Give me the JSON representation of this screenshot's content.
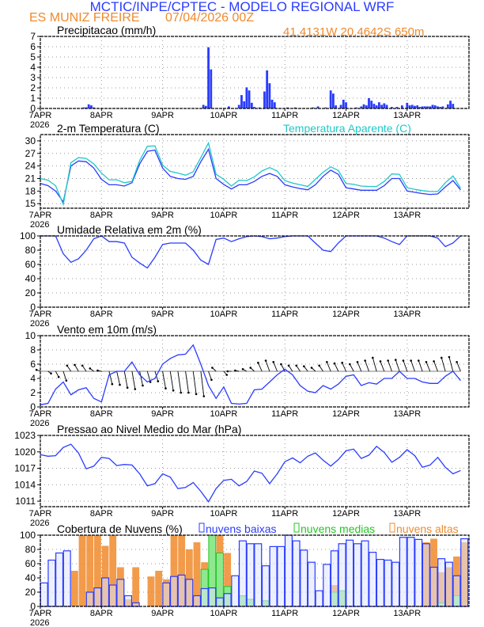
{
  "header": {
    "title": "MCTIC/INPE/CPTEC - MODELO REGIONAL WRF",
    "station": "ES MUNIZ FREIRE",
    "run": "07/04/2026 00Z",
    "location": "41.4131W 20.4642S 650m"
  },
  "colors": {
    "title": "#2a3cff",
    "orange": "#f08a2c",
    "blue": "#2a3cff",
    "cyan": "#1ec8c8",
    "green": "#22c822",
    "grid": "#999999"
  },
  "x_axis": {
    "day_labels": [
      "7APR",
      "8APR",
      "9APR",
      "10APR",
      "11APR",
      "12APR",
      "13APR"
    ],
    "year_label": "2026",
    "times_3h": [
      "07APR00Z",
      "07APR03Z",
      "07APR06Z",
      "07APR09Z",
      "07APR12Z",
      "07APR15Z",
      "07APR18Z",
      "07APR21Z",
      "08APR00Z",
      "08APR03Z",
      "08APR06Z",
      "08APR09Z",
      "08APR12Z",
      "08APR15Z",
      "08APR18Z",
      "08APR21Z",
      "09APR00Z",
      "09APR03Z",
      "09APR06Z",
      "09APR09Z",
      "09APR12Z",
      "09APR15Z",
      "09APR18Z",
      "09APR21Z",
      "10APR00Z",
      "10APR03Z",
      "10APR06Z",
      "10APR09Z",
      "10APR12Z",
      "10APR15Z",
      "10APR18Z",
      "10APR21Z",
      "11APR00Z",
      "11APR03Z",
      "11APR06Z",
      "11APR09Z",
      "11APR12Z",
      "11APR15Z",
      "11APR18Z",
      "11APR21Z",
      "12APR00Z",
      "12APR03Z",
      "12APR06Z",
      "12APR09Z",
      "12APR12Z",
      "12APR15Z",
      "12APR18Z",
      "12APR21Z",
      "13APR00Z",
      "13APR03Z",
      "13APR06Z",
      "13APR09Z",
      "13APR12Z",
      "13APR15Z",
      "13APR18Z",
      "13APR21Z"
    ]
  },
  "chart_data": [
    {
      "type": "bar",
      "title": "Precipitacao (mm/h)",
      "ylim": [
        0,
        7
      ],
      "yticks": [
        0,
        1,
        2,
        3,
        4,
        5,
        6,
        7
      ],
      "grid": true,
      "bars": [
        [
          "07APR17Z",
          0.1
        ],
        [
          "07APR18Z",
          0.1
        ],
        [
          "07APR19Z",
          0.4
        ],
        [
          "07APR20Z",
          0.3
        ],
        [
          "07APR21Z",
          0.1
        ],
        [
          "09APR16Z",
          0.35
        ],
        [
          "09APR17Z",
          0.25
        ],
        [
          "09APR18Z",
          5.95
        ],
        [
          "09APR19Z",
          3.8
        ],
        [
          "10APR02Z",
          0.2
        ],
        [
          "10APR06Z",
          0.35
        ],
        [
          "10APR07Z",
          1.3
        ],
        [
          "10APR08Z",
          0.7
        ],
        [
          "10APR09Z",
          2.05
        ],
        [
          "10APR10Z",
          1.75
        ],
        [
          "10APR11Z",
          0.55
        ],
        [
          "10APR12Z",
          0.15
        ],
        [
          "10APR14Z",
          0.1
        ],
        [
          "10APR16Z",
          1.65
        ],
        [
          "10APR17Z",
          3.7
        ],
        [
          "10APR18Z",
          2.45
        ],
        [
          "10APR19Z",
          0.85
        ],
        [
          "10APR20Z",
          0.6
        ],
        [
          "11APR01Z",
          0.1
        ],
        [
          "11APR04Z",
          0.1
        ],
        [
          "11APR11Z",
          0.1
        ],
        [
          "11APR13Z",
          0.2
        ],
        [
          "11APR16Z",
          0.1
        ],
        [
          "11APR18Z",
          1.75
        ],
        [
          "11APR19Z",
          1.45
        ],
        [
          "11APR20Z",
          0.3
        ],
        [
          "11APR22Z",
          0.35
        ],
        [
          "11APR23Z",
          0.85
        ],
        [
          "12APR00Z",
          0.6
        ],
        [
          "12APR04Z",
          0.1
        ],
        [
          "12APR06Z",
          0.2
        ],
        [
          "12APR07Z",
          0.4
        ],
        [
          "12APR08Z",
          0.3
        ],
        [
          "12APR09Z",
          1.0
        ],
        [
          "12APR10Z",
          0.75
        ],
        [
          "12APR11Z",
          0.45
        ],
        [
          "12APR12Z",
          0.3
        ],
        [
          "12APR13Z",
          0.6
        ],
        [
          "12APR14Z",
          0.35
        ],
        [
          "12APR15Z",
          0.5
        ],
        [
          "12APR16Z",
          0.35
        ],
        [
          "12APR18Z",
          0.15
        ],
        [
          "12APR20Z",
          0.15
        ],
        [
          "12APR22Z",
          0.3
        ],
        [
          "13APR00Z",
          0.55
        ],
        [
          "13APR01Z",
          0.3
        ],
        [
          "13APR02Z",
          0.35
        ],
        [
          "13APR03Z",
          0.25
        ],
        [
          "13APR04Z",
          0.3
        ],
        [
          "13APR05Z",
          0.15
        ],
        [
          "13APR06Z",
          0.2
        ],
        [
          "13APR07Z",
          0.2
        ],
        [
          "13APR08Z",
          0.2
        ],
        [
          "13APR09Z",
          0.2
        ],
        [
          "13APR10Z",
          0.35
        ],
        [
          "13APR11Z",
          0.3
        ],
        [
          "13APR12Z",
          0.2
        ],
        [
          "13APR13Z",
          0.15
        ],
        [
          "13APR14Z",
          0.2
        ],
        [
          "13APR16Z",
          0.4
        ],
        [
          "13APR17Z",
          0.75
        ],
        [
          "13APR18Z",
          0.45
        ]
      ]
    },
    {
      "type": "line",
      "title": "2-m Temperatura (C)",
      "ylim": [
        13.9,
        31.5
      ],
      "yticks": [
        15,
        18,
        21,
        24,
        27,
        30
      ],
      "grid": true,
      "series": [
        {
          "name": "2-m Temperatura (C)",
          "color": "#2a3cff",
          "values": [
            19.8,
            19.3,
            18,
            15.4,
            24,
            25.2,
            25,
            23.5,
            20.8,
            19.5,
            19.5,
            19.2,
            20,
            24.5,
            27.5,
            27.8,
            23.5,
            21.5,
            21,
            20.8,
            21.5,
            25,
            28,
            21,
            19.6,
            18.5,
            19.5,
            19.5,
            20.3,
            21.5,
            22.2,
            21.5,
            19.5,
            19,
            18.6,
            18.3,
            19.5,
            21.5,
            23,
            22,
            18.8,
            18.5,
            18.2,
            18.2,
            18.2,
            19.3,
            21,
            21,
            18,
            17.7,
            17.4,
            17.2,
            17.3,
            19,
            20.5,
            18.3
          ]
        },
        {
          "name": "Temperatura Aparente (C)",
          "color": "#1ec8c8",
          "values": [
            21,
            20.6,
            19.3,
            14.8,
            24.8,
            26,
            25.8,
            24.5,
            22.3,
            20.7,
            20.7,
            20,
            20.3,
            25.3,
            28.7,
            28.8,
            24.2,
            22.7,
            22.3,
            21.8,
            22.6,
            26,
            29.5,
            22,
            20.8,
            19.2,
            20.6,
            20.5,
            21.4,
            22.8,
            23.6,
            22.8,
            20.5,
            19.9,
            19.5,
            19.1,
            20.8,
            22.5,
            23.8,
            22.9,
            19.8,
            19.6,
            19.2,
            19.1,
            19.1,
            20.3,
            22.1,
            22,
            18.8,
            18.4,
            18.1,
            17.9,
            17.9,
            20,
            21.6,
            18.7
          ]
        }
      ]
    },
    {
      "type": "line",
      "title": "Umidade Relativa em 2m (%)",
      "ylim": [
        0,
        100
      ],
      "yticks": [
        0,
        20,
        40,
        60,
        80,
        100
      ],
      "grid": true,
      "series": [
        {
          "color": "#2a3cff",
          "values": [
            100,
            100,
            100,
            75,
            63,
            68,
            80,
            96,
            100,
            92,
            92,
            90,
            70,
            62,
            55,
            70,
            88,
            90,
            90,
            90,
            80,
            66,
            60,
            95,
            97,
            92,
            96,
            99,
            100,
            99,
            96,
            97,
            99,
            100,
            100,
            100,
            90,
            80,
            78,
            90,
            100,
            100,
            100,
            100,
            100,
            97,
            92,
            88,
            100,
            100,
            100,
            100,
            97,
            85,
            90,
            100
          ]
        }
      ]
    },
    {
      "type": "line",
      "title": "Vento em 10m (m/s)",
      "ylim": [
        0,
        10
      ],
      "yticks": [
        0,
        2,
        4,
        6,
        8,
        10
      ],
      "grid": true,
      "series": [
        {
          "color": "#2a3cff",
          "values": [
            0.3,
            0.5,
            2.5,
            3.5,
            1.7,
            2.4,
            2.7,
            1.2,
            0.7,
            4.5,
            5,
            5,
            6.3,
            4.5,
            3.5,
            4,
            6,
            6.8,
            7.3,
            7.4,
            8.7,
            6,
            3,
            1.2,
            2.8,
            0.5,
            0.4,
            0.5,
            2.4,
            2.5,
            3.5,
            4.5,
            5.3,
            4.5,
            3,
            2.2,
            2,
            3,
            2.5,
            3.2,
            4.3,
            4.5,
            3,
            3.4,
            3.2,
            4,
            4,
            5,
            4,
            4,
            3.5,
            3.3,
            3.3,
            4.3,
            5,
            3.7
          ]
        }
      ],
      "vectors": {
        "baseline": 5,
        "color": "#000000",
        "dy": [
          0.2,
          -0.3,
          -0.8,
          -1.3,
          0.8,
          0.9,
          0.8,
          0.4,
          0.1,
          -1.8,
          -1.9,
          -2.3,
          -2.5,
          -2,
          -1.5,
          -1.4,
          -2.4,
          -2.7,
          -3,
          -3,
          -3.2,
          -3.5,
          -1.2,
          0.5,
          -0.5,
          0,
          0.1,
          0.3,
          0.5,
          1.2,
          1.5,
          1.3,
          1,
          0.8,
          0.8,
          0.7,
          0.5,
          0.8,
          1.3,
          1.1,
          1.2,
          1,
          1.3,
          1.5,
          1.9,
          1.4,
          1.5,
          1.6,
          1.5,
          1.5,
          1.5,
          1.3,
          1.4,
          1.9,
          2,
          1.3
        ]
      }
    },
    {
      "type": "line",
      "title": "Pressao ao Nivel Medio do Mar (hPa)",
      "ylim": [
        1010,
        1023
      ],
      "yticks": [
        1011,
        1014,
        1017,
        1020,
        1023
      ],
      "grid": true,
      "series": [
        {
          "color": "#2a3cff",
          "values": [
            1019.5,
            1019.2,
            1019.3,
            1020.8,
            1021.4,
            1019.8,
            1016.9,
            1017.4,
            1019,
            1018.8,
            1017.5,
            1017.7,
            1017.6,
            1016,
            1013.8,
            1014.2,
            1016,
            1015.4,
            1013.3,
            1013.5,
            1014.4,
            1012.8,
            1010.9,
            1013.3,
            1014.8,
            1015,
            1013.8,
            1014.6,
            1016.5,
            1016.1,
            1014.2,
            1016,
            1018.2,
            1018.9,
            1018,
            1019.2,
            1019.8,
            1018.5,
            1017.4,
            1018.6,
            1020.2,
            1020.5,
            1018.8,
            1019.4,
            1021,
            1019.9,
            1018.1,
            1019,
            1020.4,
            1019.3,
            1017.2,
            1017.6,
            1019,
            1017.2,
            1016,
            1016.6
          ]
        }
      ]
    },
    {
      "type": "bar",
      "title": "Cobertura de Nuvens (%)",
      "ylim": [
        0,
        100
      ],
      "yticks": [
        0,
        20,
        40,
        60,
        80,
        100
      ],
      "grid": true,
      "legend": "top",
      "series": [
        {
          "name": "nuvens baixas",
          "color": "#2a3cff",
          "values": [
            33,
            65,
            75,
            78,
            0,
            0,
            20,
            26,
            40,
            30,
            38,
            15,
            5,
            0,
            0,
            0,
            33,
            42,
            44,
            38,
            15,
            25,
            26,
            12,
            18,
            43,
            92,
            88,
            88,
            57,
            84,
            84,
            100,
            92,
            79,
            62,
            22,
            59,
            78,
            88,
            93,
            88,
            92,
            76,
            66,
            65,
            62,
            97,
            97,
            94,
            88,
            55,
            67,
            62,
            43,
            95
          ]
        },
        {
          "name": "nuvens medias",
          "color": "#22c822",
          "values": [
            0,
            0,
            0,
            0,
            0,
            0,
            0,
            0,
            0,
            0,
            0,
            0,
            0,
            0,
            0,
            0,
            0,
            0,
            0,
            0,
            0,
            52,
            100,
            75,
            28,
            0,
            15,
            10,
            0,
            8,
            0,
            0,
            0,
            0,
            0,
            0,
            0,
            0,
            20,
            22,
            0,
            0,
            0,
            0,
            0,
            0,
            0,
            0,
            0,
            0,
            0,
            0,
            5,
            0,
            15,
            0
          ]
        },
        {
          "name": "nuvens altas",
          "color": "#f08a2c",
          "values": [
            0,
            0,
            0,
            0,
            50,
            100,
            100,
            100,
            85,
            100,
            55,
            10,
            55,
            0,
            42,
            50,
            38,
            100,
            100,
            80,
            90,
            62,
            95,
            100,
            75,
            0,
            0,
            0,
            0,
            0,
            0,
            0,
            0,
            0,
            0,
            0,
            0,
            0,
            30,
            0,
            0,
            0,
            0,
            0,
            0,
            0,
            0,
            0,
            0,
            0,
            90,
            95,
            48,
            55,
            70,
            90
          ]
        }
      ]
    }
  ]
}
